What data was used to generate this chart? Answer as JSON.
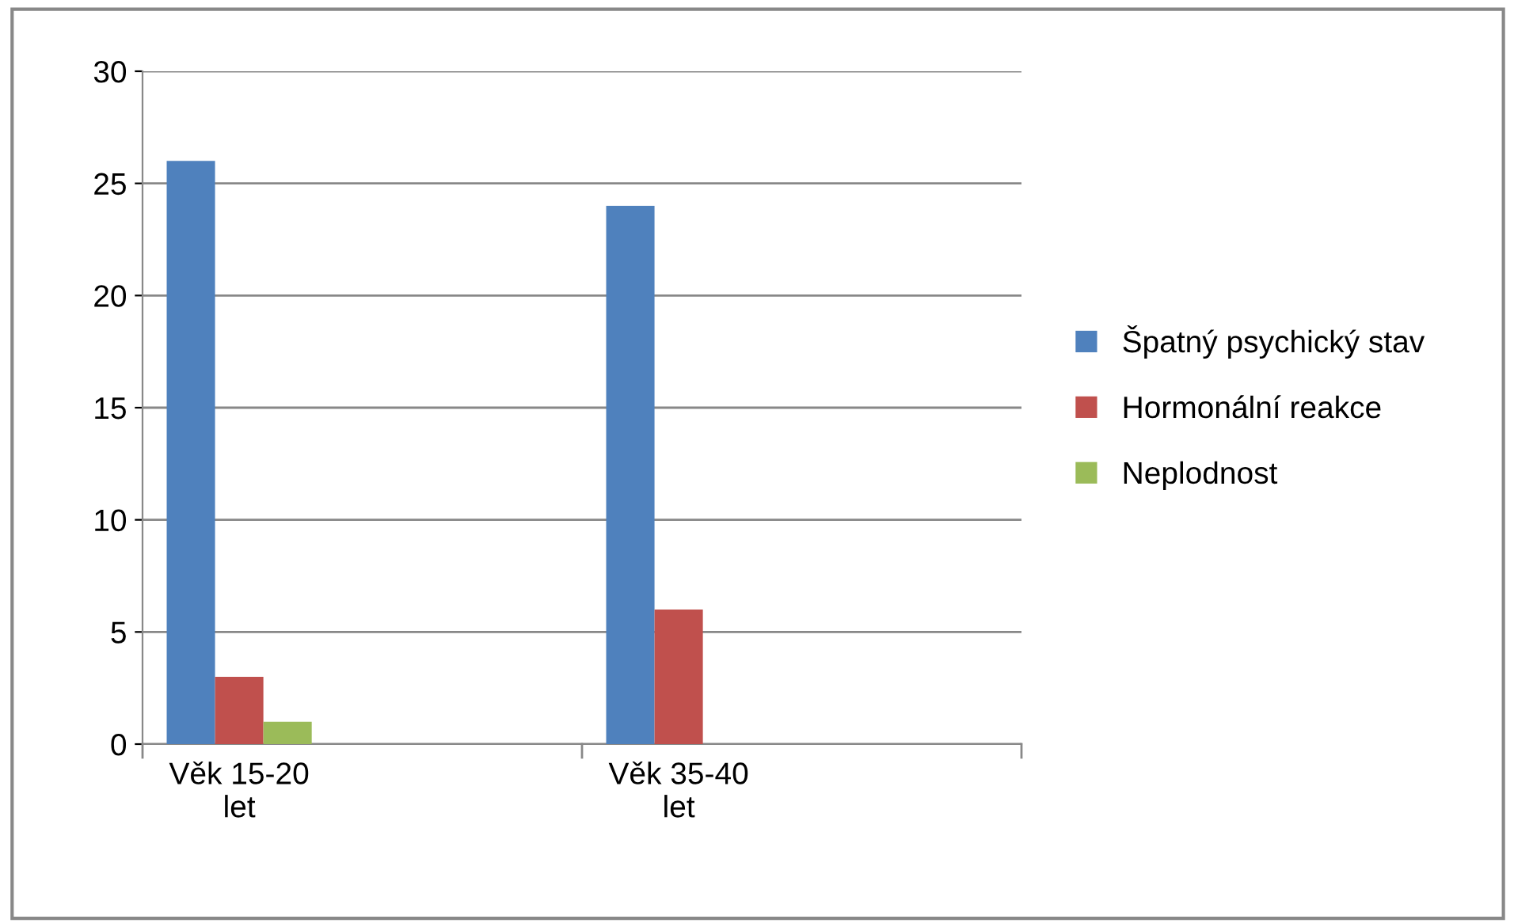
{
  "chart_data": {
    "type": "bar",
    "categories": [
      "Věk 15-20 let",
      "Věk 35-40 let"
    ],
    "series": [
      {
        "name": "Špatný psychický stav",
        "color": "#4f81bd",
        "values": [
          26,
          24
        ]
      },
      {
        "name": "Hormonální reakce",
        "color": "#c0504d",
        "values": [
          3,
          6
        ]
      },
      {
        "name": "Neplodnost",
        "color": "#9bbb59",
        "values": [
          1,
          0
        ]
      }
    ],
    "ylim": [
      0,
      30
    ],
    "yticks": [
      0,
      5,
      10,
      15,
      20,
      25,
      30
    ],
    "grid": "y",
    "legend": "right"
  }
}
